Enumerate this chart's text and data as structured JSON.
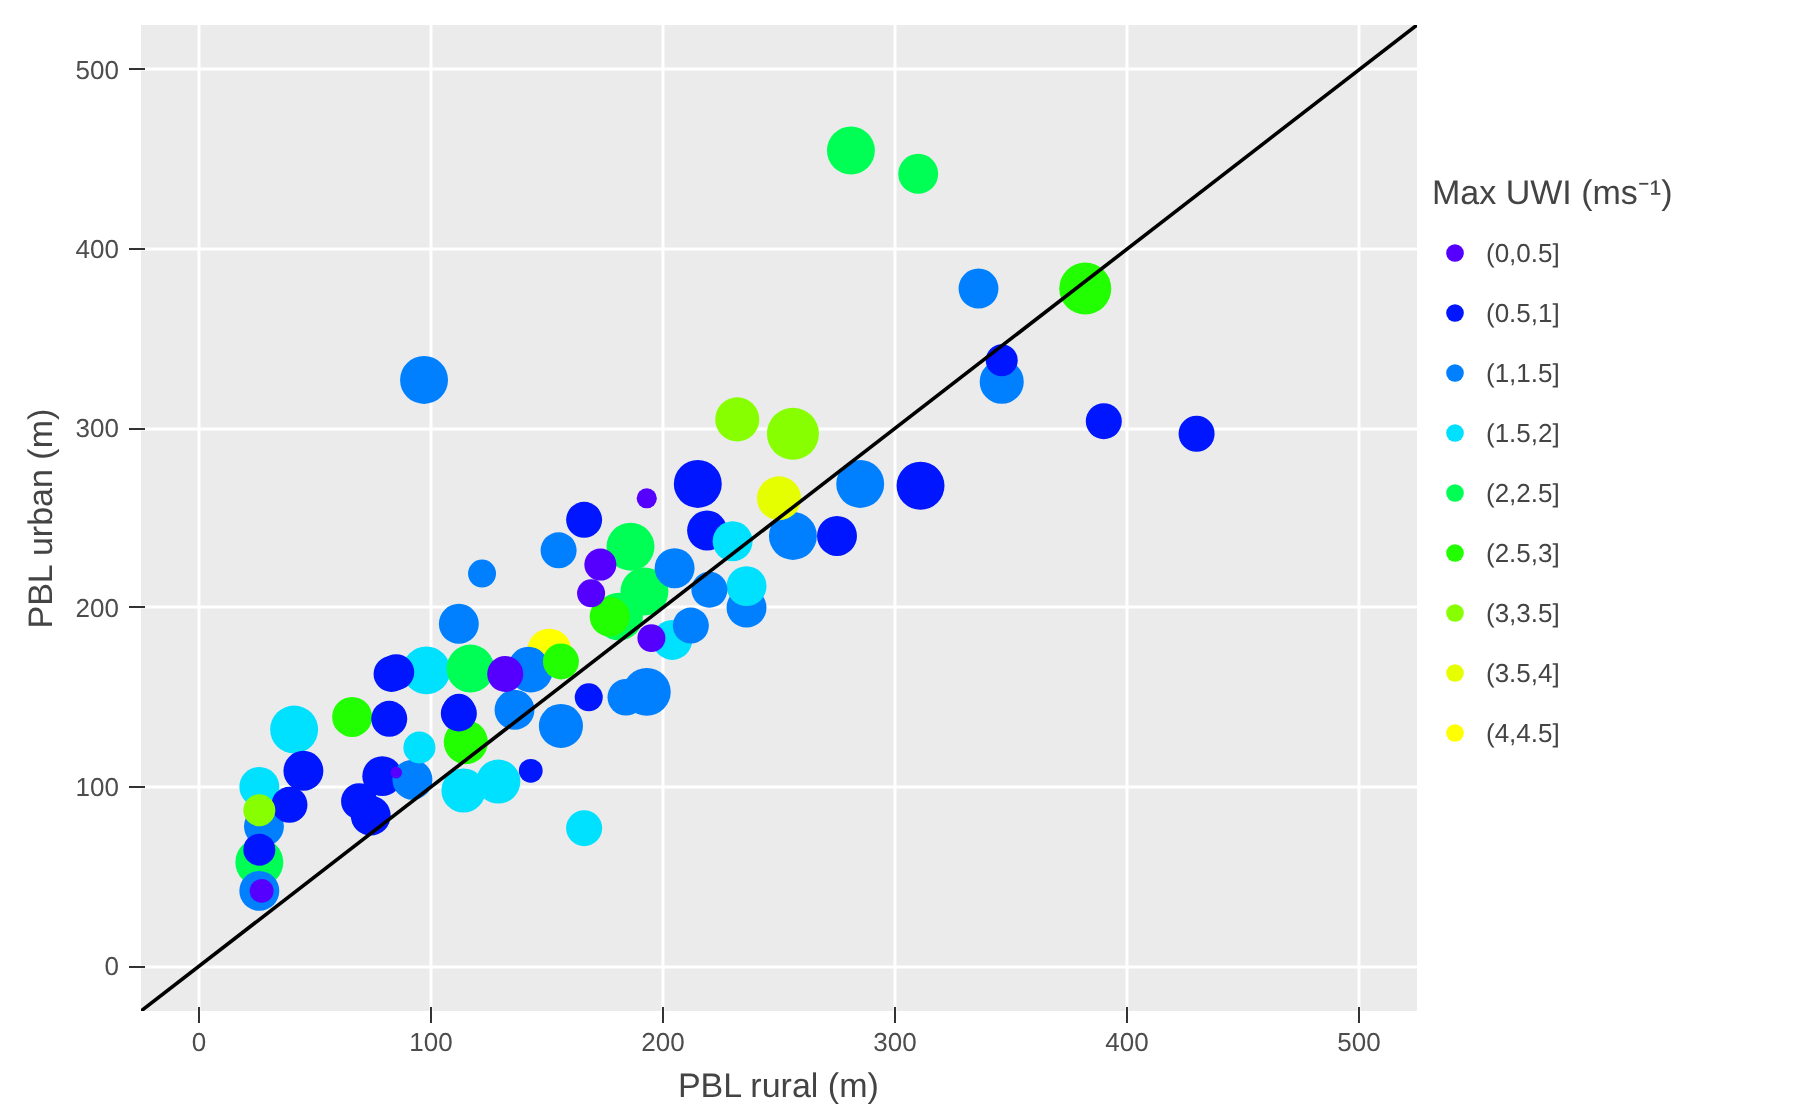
{
  "chart_data": {
    "type": "bubble",
    "xlabel": "PBL rural (m)",
    "ylabel": "PBL urban (m)",
    "legend_title": "Max UWI (ms⁻¹)",
    "legend": "right",
    "grid": true,
    "xlim": [
      -25,
      525
    ],
    "ylim": [
      -25,
      525
    ],
    "xticks": [
      0,
      100,
      200,
      300,
      400,
      500
    ],
    "yticks": [
      0,
      100,
      200,
      300,
      400,
      500
    ],
    "series": [
      {
        "name": "(0,0.5]",
        "color": "#5500ff",
        "x": [
          27,
          193,
          173,
          169,
          195,
          132,
          85
        ],
        "values": [
          42,
          261,
          224,
          208,
          183,
          163,
          108
        ],
        "sizes": [
          0.21,
          0.15,
          0.38,
          0.29,
          0.29,
          0.48,
          0.05
        ]
      },
      {
        "name": "(0.5,1]",
        "color": "#0016ff",
        "x": [
          346,
          390,
          430,
          215,
          219,
          166,
          275,
          311,
          168,
          83,
          112,
          85,
          82,
          45,
          39,
          69,
          79,
          74,
          112,
          143,
          26
        ],
        "values": [
          338,
          304,
          297,
          269,
          243,
          249,
          240,
          268,
          150,
          163,
          143,
          164,
          138,
          109,
          90,
          92,
          106,
          84,
          141,
          109,
          65
        ],
        "sizes": [
          0.38,
          0.48,
          0.48,
          0.85,
          0.59,
          0.48,
          0.59,
          0.85,
          0.29,
          0.48,
          0.38,
          0.48,
          0.48,
          0.59,
          0.48,
          0.48,
          0.59,
          0.59,
          0.48,
          0.21,
          0.38
        ]
      },
      {
        "name": "(1,1.5]",
        "color": "#0080ff",
        "x": [
          97,
          336,
          346,
          285,
          256,
          155,
          122,
          112,
          205,
          236,
          212,
          193,
          143,
          220,
          92,
          28,
          156,
          136,
          142,
          26,
          184
        ],
        "values": [
          327,
          378,
          326,
          269,
          240,
          232,
          219,
          191,
          222,
          200,
          190,
          153,
          165,
          210,
          104,
          78,
          134,
          143,
          167,
          42,
          150
        ],
        "sizes": [
          0.85,
          0.59,
          0.72,
          0.85,
          0.85,
          0.48,
          0.29,
          0.59,
          0.59,
          0.59,
          0.48,
          0.85,
          0.72,
          0.48,
          0.59,
          0.59,
          0.72,
          0.59,
          0.59,
          0.59,
          0.5
        ]
      },
      {
        "name": "(1.5,2]",
        "color": "#00e0ff",
        "x": [
          166,
          41,
          26,
          98,
          95,
          114,
          129,
          204,
          230,
          236
        ],
        "values": [
          77,
          132,
          100,
          165,
          122,
          98,
          103,
          182,
          237,
          212
        ],
        "sizes": [
          0.48,
          0.85,
          0.59,
          0.85,
          0.38,
          0.72,
          0.72,
          0.59,
          0.59,
          0.59
        ]
      },
      {
        "name": "(2,2.5]",
        "color": "#00ff55",
        "x": [
          281,
          310,
          186,
          192,
          181,
          117,
          26
        ],
        "values": [
          455,
          442,
          234,
          209,
          195,
          166,
          58
        ],
        "sizes": [
          0.85,
          0.59,
          0.85,
          0.85,
          0.85,
          0.85,
          0.85
        ]
      },
      {
        "name": "(2.5,3]",
        "color": "#22ff00",
        "x": [
          382,
          66,
          156,
          115,
          177
        ],
        "values": [
          378,
          139,
          170,
          125,
          195
        ],
        "sizes": [
          1,
          0.59,
          0.48,
          0.72,
          0.59
        ]
      },
      {
        "name": "(3,3.5]",
        "color": "#88ff00",
        "x": [
          232,
          256,
          26
        ],
        "values": [
          305,
          297,
          87
        ],
        "sizes": [
          0.72,
          1,
          0.38
        ]
      },
      {
        "name": "(3.5,4]",
        "color": "#e6ff00",
        "x": [
          250
        ],
        "values": [
          261
        ],
        "sizes": [
          0.72
        ]
      },
      {
        "name": "(4,4.5]",
        "color": "#ffff00",
        "x": [
          151
        ],
        "values": [
          176
        ],
        "sizes": [
          0.72
        ]
      },
      {
        "type": "line",
        "color": "#000000",
        "x": [
          -25,
          525
        ],
        "values": [
          -25,
          525
        ]
      }
    ]
  }
}
